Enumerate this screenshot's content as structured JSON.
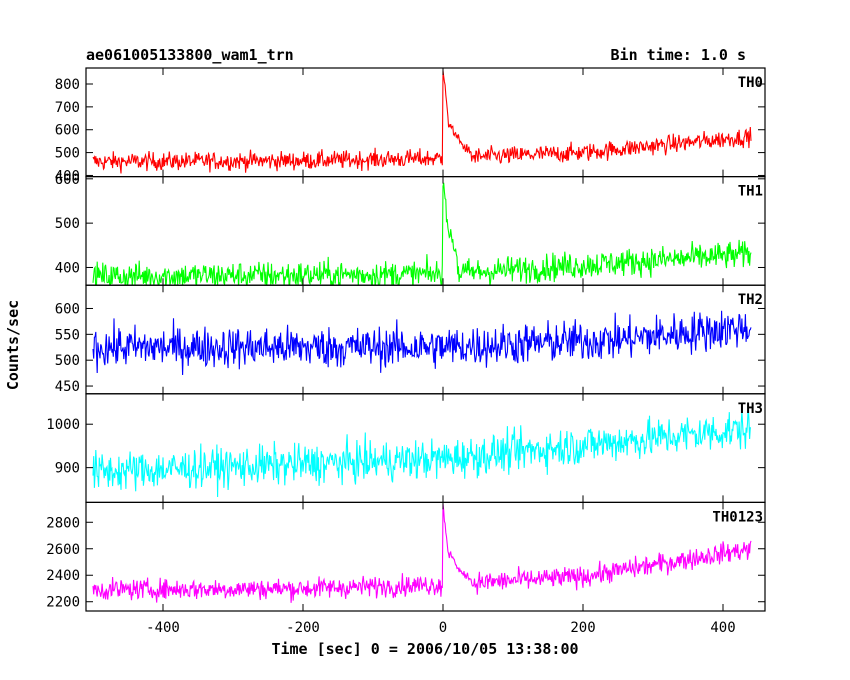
{
  "header": {
    "title": "ae061005133800_wam1_trn",
    "bin_time": "Bin time: 1.0 s"
  },
  "chart_data": {
    "type": "line",
    "xlabel": "Time [sec] 0 = 2006/10/05 13:38:00",
    "ylabel": "Counts/sec",
    "xlim": [
      -510,
      460
    ],
    "xticks": [
      -400,
      -200,
      0,
      200,
      400
    ],
    "x_range": [
      -500,
      440
    ],
    "burst_time": 0,
    "panels": [
      {
        "name": "TH0",
        "color": "#ff0000",
        "ylim": [
          395,
          870
        ],
        "yticks": [
          400,
          500,
          600,
          700,
          800
        ],
        "baseline": [
          [
            -500,
            460
          ],
          [
            -200,
            465
          ],
          [
            0,
            475
          ],
          [
            200,
            500
          ],
          [
            440,
            570
          ]
        ],
        "noise": 28,
        "burst": [
          [
            0,
            870
          ],
          [
            3,
            780
          ],
          [
            8,
            620
          ],
          [
            15,
            600
          ],
          [
            25,
            540
          ],
          [
            40,
            500
          ]
        ]
      },
      {
        "name": "TH1",
        "color": "#00ff00",
        "ylim": [
          360,
          605
        ],
        "yticks": [
          400,
          500,
          600
        ],
        "baseline": [
          [
            -500,
            380
          ],
          [
            0,
            385
          ],
          [
            440,
            430
          ]
        ],
        "noise": 22,
        "burst": [
          [
            0,
            600
          ],
          [
            3,
            550
          ],
          [
            8,
            480
          ],
          [
            20,
            430
          ]
        ]
      },
      {
        "name": "TH2",
        "color": "#0000ff",
        "ylim": [
          435,
          645
        ],
        "yticks": [
          450,
          500,
          550,
          600
        ],
        "baseline": [
          [
            -500,
            525
          ],
          [
            0,
            525
          ],
          [
            250,
            540
          ],
          [
            440,
            565
          ]
        ],
        "noise": 28,
        "burst": []
      },
      {
        "name": "TH3",
        "color": "#00ffff",
        "ylim": [
          820,
          1070
        ],
        "yticks": [
          900,
          1000
        ],
        "baseline": [
          [
            -500,
            890
          ],
          [
            0,
            920
          ],
          [
            440,
            990
          ]
        ],
        "noise": 32,
        "burst": []
      },
      {
        "name": "TH0123",
        "color": "#ff00ff",
        "ylim": [
          2130,
          2950
        ],
        "yticks": [
          2200,
          2400,
          2600,
          2800
        ],
        "baseline": [
          [
            -500,
            2290
          ],
          [
            -200,
            2300
          ],
          [
            0,
            2330
          ],
          [
            200,
            2390
          ],
          [
            440,
            2600
          ]
        ],
        "noise": 55,
        "burst": [
          [
            0,
            2950
          ],
          [
            3,
            2780
          ],
          [
            8,
            2560
          ],
          [
            15,
            2520
          ],
          [
            25,
            2420
          ],
          [
            40,
            2370
          ]
        ]
      }
    ]
  }
}
